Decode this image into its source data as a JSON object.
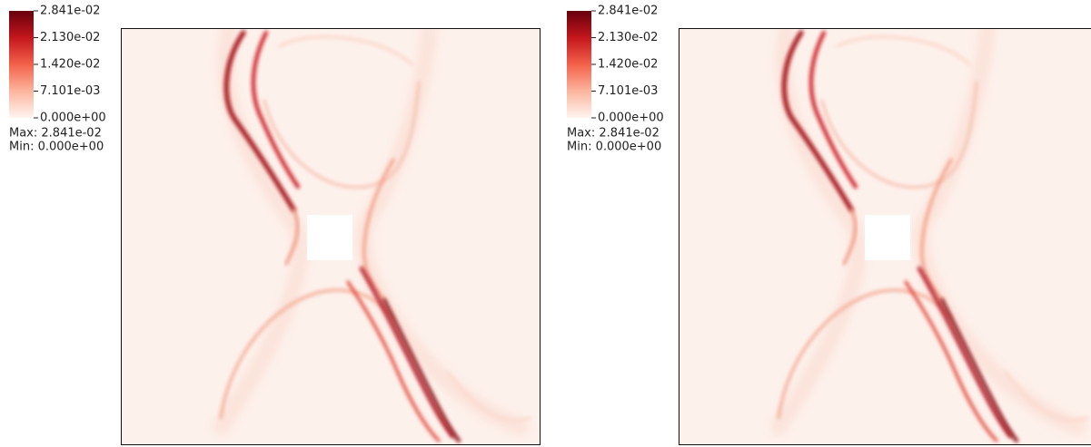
{
  "panels": [
    {
      "legend": {
        "ticks": [
          "2.841e-02",
          "2.130e-02",
          "1.420e-02",
          "7.101e-03",
          "0.000e+00"
        ],
        "max": "Max: 2.841e-02",
        "min": "Min: 0.000e+00"
      }
    },
    {
      "legend": {
        "ticks": [
          "2.841e-02",
          "2.130e-02",
          "1.420e-02",
          "7.101e-03",
          "0.000e+00"
        ],
        "max": "Max: 2.841e-02",
        "min": "Min: 0.000e+00"
      }
    }
  ]
}
